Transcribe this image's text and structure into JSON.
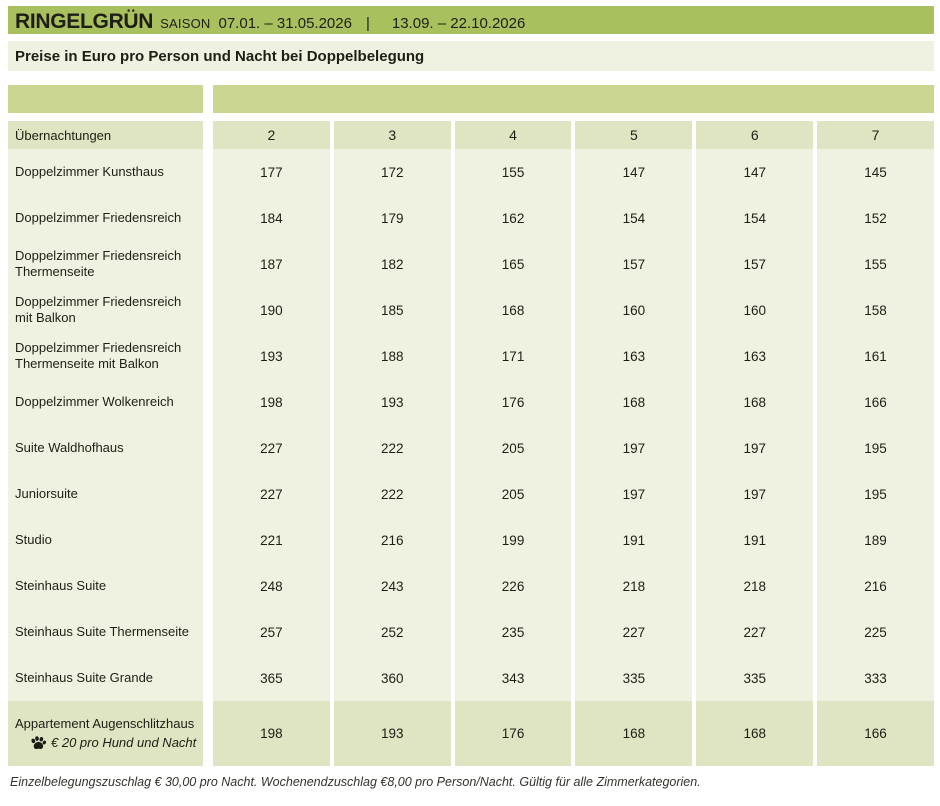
{
  "header": {
    "title": "RINGELGRÜN",
    "season_label": "SAISON",
    "date_range_1": "07.01. – 31.05.2026",
    "separator": "|",
    "date_range_2": "13.09. – 22.10.2026"
  },
  "subtitle": "Preise in Euro pro Person und Nacht bei Doppelbelegung",
  "table": {
    "row_header": "Übernachtungen",
    "night_columns": [
      "2",
      "3",
      "4",
      "5",
      "6",
      "7"
    ],
    "rows": [
      {
        "label": "Doppelzimmer Kunsthaus",
        "prices": [
          177,
          172,
          155,
          147,
          147,
          145
        ]
      },
      {
        "label": "Doppelzimmer Friedensreich",
        "prices": [
          184,
          179,
          162,
          154,
          154,
          152
        ]
      },
      {
        "label": "Doppelzimmer Friedensreich Thermenseite",
        "prices": [
          187,
          182,
          165,
          157,
          157,
          155
        ]
      },
      {
        "label": "Doppelzimmer Friedensreich mit Balkon",
        "prices": [
          190,
          185,
          168,
          160,
          160,
          158
        ]
      },
      {
        "label": "Doppelzimmer Friedensreich Thermenseite mit Balkon",
        "prices": [
          193,
          188,
          171,
          163,
          163,
          161
        ]
      },
      {
        "label": "Doppelzimmer Wolkenreich",
        "prices": [
          198,
          193,
          176,
          168,
          168,
          166
        ]
      },
      {
        "label": "Suite Waldhofhaus",
        "prices": [
          227,
          222,
          205,
          197,
          197,
          195
        ]
      },
      {
        "label": "Juniorsuite",
        "prices": [
          227,
          222,
          205,
          197,
          197,
          195
        ]
      },
      {
        "label": "Studio",
        "prices": [
          221,
          216,
          199,
          191,
          191,
          189
        ]
      },
      {
        "label": "Steinhaus Suite",
        "prices": [
          248,
          243,
          226,
          218,
          218,
          216
        ]
      },
      {
        "label": "Steinhaus Suite Thermenseite",
        "prices": [
          257,
          252,
          235,
          227,
          227,
          225
        ]
      },
      {
        "label": "Steinhaus Suite Grande",
        "prices": [
          365,
          360,
          343,
          335,
          335,
          333
        ]
      }
    ],
    "special_row": {
      "label": "Appartement Augenschlitzhaus",
      "pet_icon": "paw-icon",
      "pet_note": "€ 20 pro Hund und Nacht",
      "prices": [
        198,
        193,
        176,
        168,
        168,
        166
      ]
    }
  },
  "footnote": "Einzelbelegungszuschlag € 30,00 pro Nacht. Wochenendzuschlag €8,00 pro Person/Nacht. Gültig für alle Zimmerkategorien.",
  "colors": {
    "accent_olive": "#a9c05e",
    "band_green": "#cbd693",
    "header_cell_green": "#dfe5c2",
    "row_light_green": "#f0f2e1",
    "text": "#1e1e15",
    "footnote_text": "#33332b",
    "page_background": "#ffffff"
  }
}
